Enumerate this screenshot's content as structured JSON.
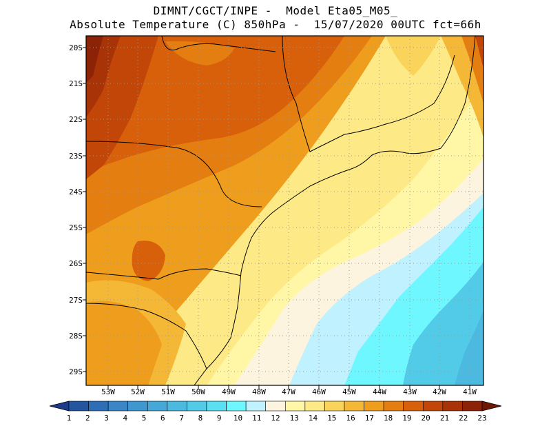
{
  "header": {
    "line1": "DIMNT/CGCT/INPE -  Model Eta05_M05_",
    "line2": "Absolute Temperature (C) 850hPa -  15/07/2020 00UTC fct=66h"
  },
  "axes": {
    "lat_labels": [
      "20S",
      "21S",
      "22S",
      "23S",
      "24S",
      "25S",
      "26S",
      "27S",
      "28S",
      "29S"
    ],
    "lon_labels": [
      "53W",
      "52W",
      "51W",
      "50W",
      "49W",
      "48W",
      "47W",
      "46W",
      "45W",
      "44W",
      "43W",
      "42W",
      "41W"
    ]
  },
  "map_data": {
    "variable": "Absolute Temperature",
    "units": "C",
    "level": "850hPa",
    "grid": "dotted",
    "colorbar": {
      "values": [
        1,
        2,
        3,
        4,
        5,
        6,
        7,
        8,
        9,
        10,
        11,
        12,
        13,
        14,
        15,
        16,
        17,
        18,
        19,
        20,
        21,
        22,
        23
      ],
      "colors": [
        "#1e3a8a",
        "#2456a0",
        "#2e6eb6",
        "#3a86c6",
        "#3f97cf",
        "#45a8d8",
        "#4cb9e0",
        "#52cbe8",
        "#5ae0f2",
        "#6ff7ff",
        "#bff1ff",
        "#fdf4e0",
        "#fff7a6",
        "#fde985",
        "#f9d35a",
        "#f4b836",
        "#ee9e1c",
        "#e47e10",
        "#d8600a",
        "#c14608",
        "#a83307",
        "#8c2306",
        "#6f1705"
      ]
    }
  }
}
